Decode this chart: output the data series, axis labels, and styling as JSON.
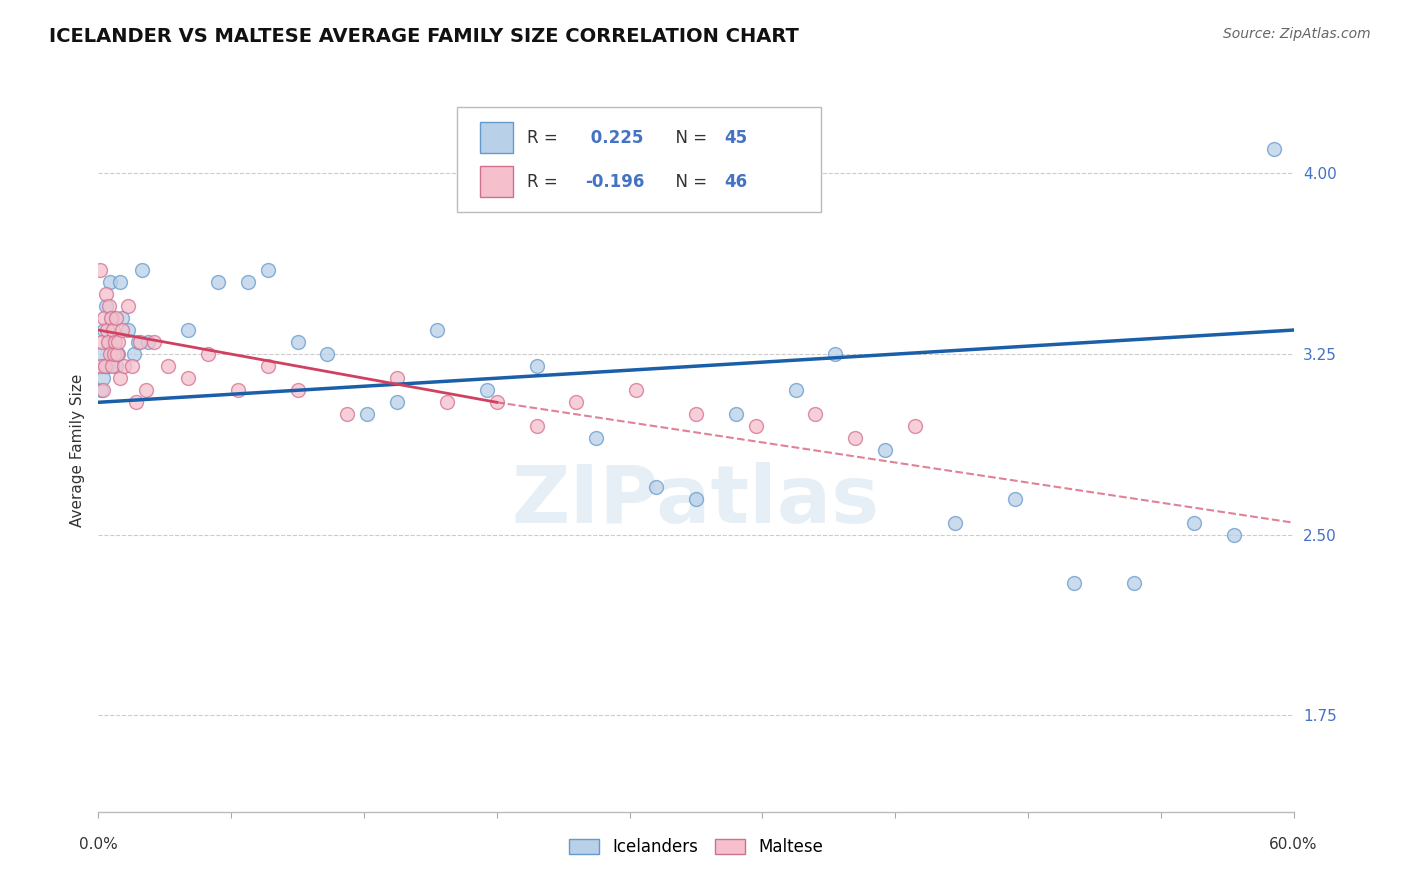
{
  "title": "ICELANDER VS MALTESE AVERAGE FAMILY SIZE CORRELATION CHART",
  "source": "Source: ZipAtlas.com",
  "ylabel": "Average Family Size",
  "xlim": [
    0.0,
    60.0
  ],
  "ylim": [
    1.35,
    4.35
  ],
  "yticks": [
    1.75,
    2.5,
    3.25,
    4.0
  ],
  "r_icelander": 0.225,
  "n_icelander": 45,
  "r_maltese": -0.196,
  "n_maltese": 46,
  "icelander_color": "#b8d0e8",
  "icelander_edge_color": "#6699cc",
  "icelander_line_color": "#1a5fa8",
  "maltese_color": "#f5c0cc",
  "maltese_edge_color": "#d07090",
  "maltese_line_color": "#d04060",
  "background_color": "#ffffff",
  "grid_color": "#cccccc",
  "icelander_x": [
    0.15,
    0.2,
    0.25,
    0.3,
    0.35,
    0.4,
    0.5,
    0.55,
    0.6,
    0.7,
    0.8,
    0.9,
    1.0,
    1.1,
    1.2,
    1.5,
    1.8,
    2.0,
    2.2,
    2.5,
    4.5,
    6.0,
    7.5,
    8.5,
    10.0,
    11.5,
    13.5,
    15.0,
    17.0,
    19.5,
    22.0,
    25.0,
    28.0,
    30.0,
    32.0,
    35.0,
    37.0,
    39.5,
    43.0,
    46.0,
    49.0,
    52.0,
    55.0,
    57.0,
    59.0
  ],
  "icelander_y": [
    3.1,
    3.25,
    3.15,
    3.35,
    3.2,
    3.45,
    3.2,
    3.3,
    3.55,
    3.4,
    3.3,
    3.2,
    3.25,
    3.55,
    3.4,
    3.35,
    3.25,
    3.3,
    3.6,
    3.3,
    3.35,
    3.55,
    3.55,
    3.6,
    3.3,
    3.25,
    3.0,
    3.05,
    3.35,
    3.1,
    3.2,
    2.9,
    2.7,
    2.65,
    3.0,
    3.1,
    3.25,
    2.85,
    2.55,
    2.65,
    2.3,
    2.3,
    2.55,
    2.5,
    4.1
  ],
  "maltese_x": [
    0.1,
    0.15,
    0.2,
    0.25,
    0.3,
    0.35,
    0.4,
    0.45,
    0.5,
    0.55,
    0.6,
    0.65,
    0.7,
    0.75,
    0.8,
    0.85,
    0.9,
    0.95,
    1.0,
    1.1,
    1.2,
    1.3,
    1.5,
    1.7,
    1.9,
    2.1,
    2.4,
    2.8,
    3.5,
    4.5,
    5.5,
    7.0,
    8.5,
    10.0,
    12.5,
    15.0,
    17.5,
    20.0,
    22.0,
    24.0,
    27.0,
    30.0,
    33.0,
    36.0,
    38.0,
    41.0
  ],
  "maltese_y": [
    3.6,
    3.2,
    3.3,
    3.1,
    3.4,
    3.2,
    3.5,
    3.35,
    3.3,
    3.45,
    3.25,
    3.4,
    3.2,
    3.35,
    3.25,
    3.3,
    3.4,
    3.25,
    3.3,
    3.15,
    3.35,
    3.2,
    3.45,
    3.2,
    3.05,
    3.3,
    3.1,
    3.3,
    3.2,
    3.15,
    3.25,
    3.1,
    3.2,
    3.1,
    3.0,
    3.15,
    3.05,
    3.05,
    2.95,
    3.05,
    3.1,
    3.0,
    2.95,
    3.0,
    2.9,
    2.95
  ],
  "blue_line_x0": 0.0,
  "blue_line_y0": 3.05,
  "blue_line_x1": 60.0,
  "blue_line_y1": 3.35,
  "pink_solid_x0": 0.0,
  "pink_solid_y0": 3.35,
  "pink_solid_x1": 20.0,
  "pink_solid_y1": 3.05,
  "pink_dashed_x0": 20.0,
  "pink_dashed_y0": 3.05,
  "pink_dashed_x1": 60.0,
  "pink_dashed_y1": 2.55,
  "title_fontsize": 14,
  "axis_label_fontsize": 11,
  "tick_fontsize": 11,
  "source_fontsize": 10,
  "marker_size": 100,
  "watermark_text": "ZIPatlas",
  "watermark_color": "#c5d8ea",
  "watermark_fontsize": 58,
  "watermark_alpha": 0.4
}
